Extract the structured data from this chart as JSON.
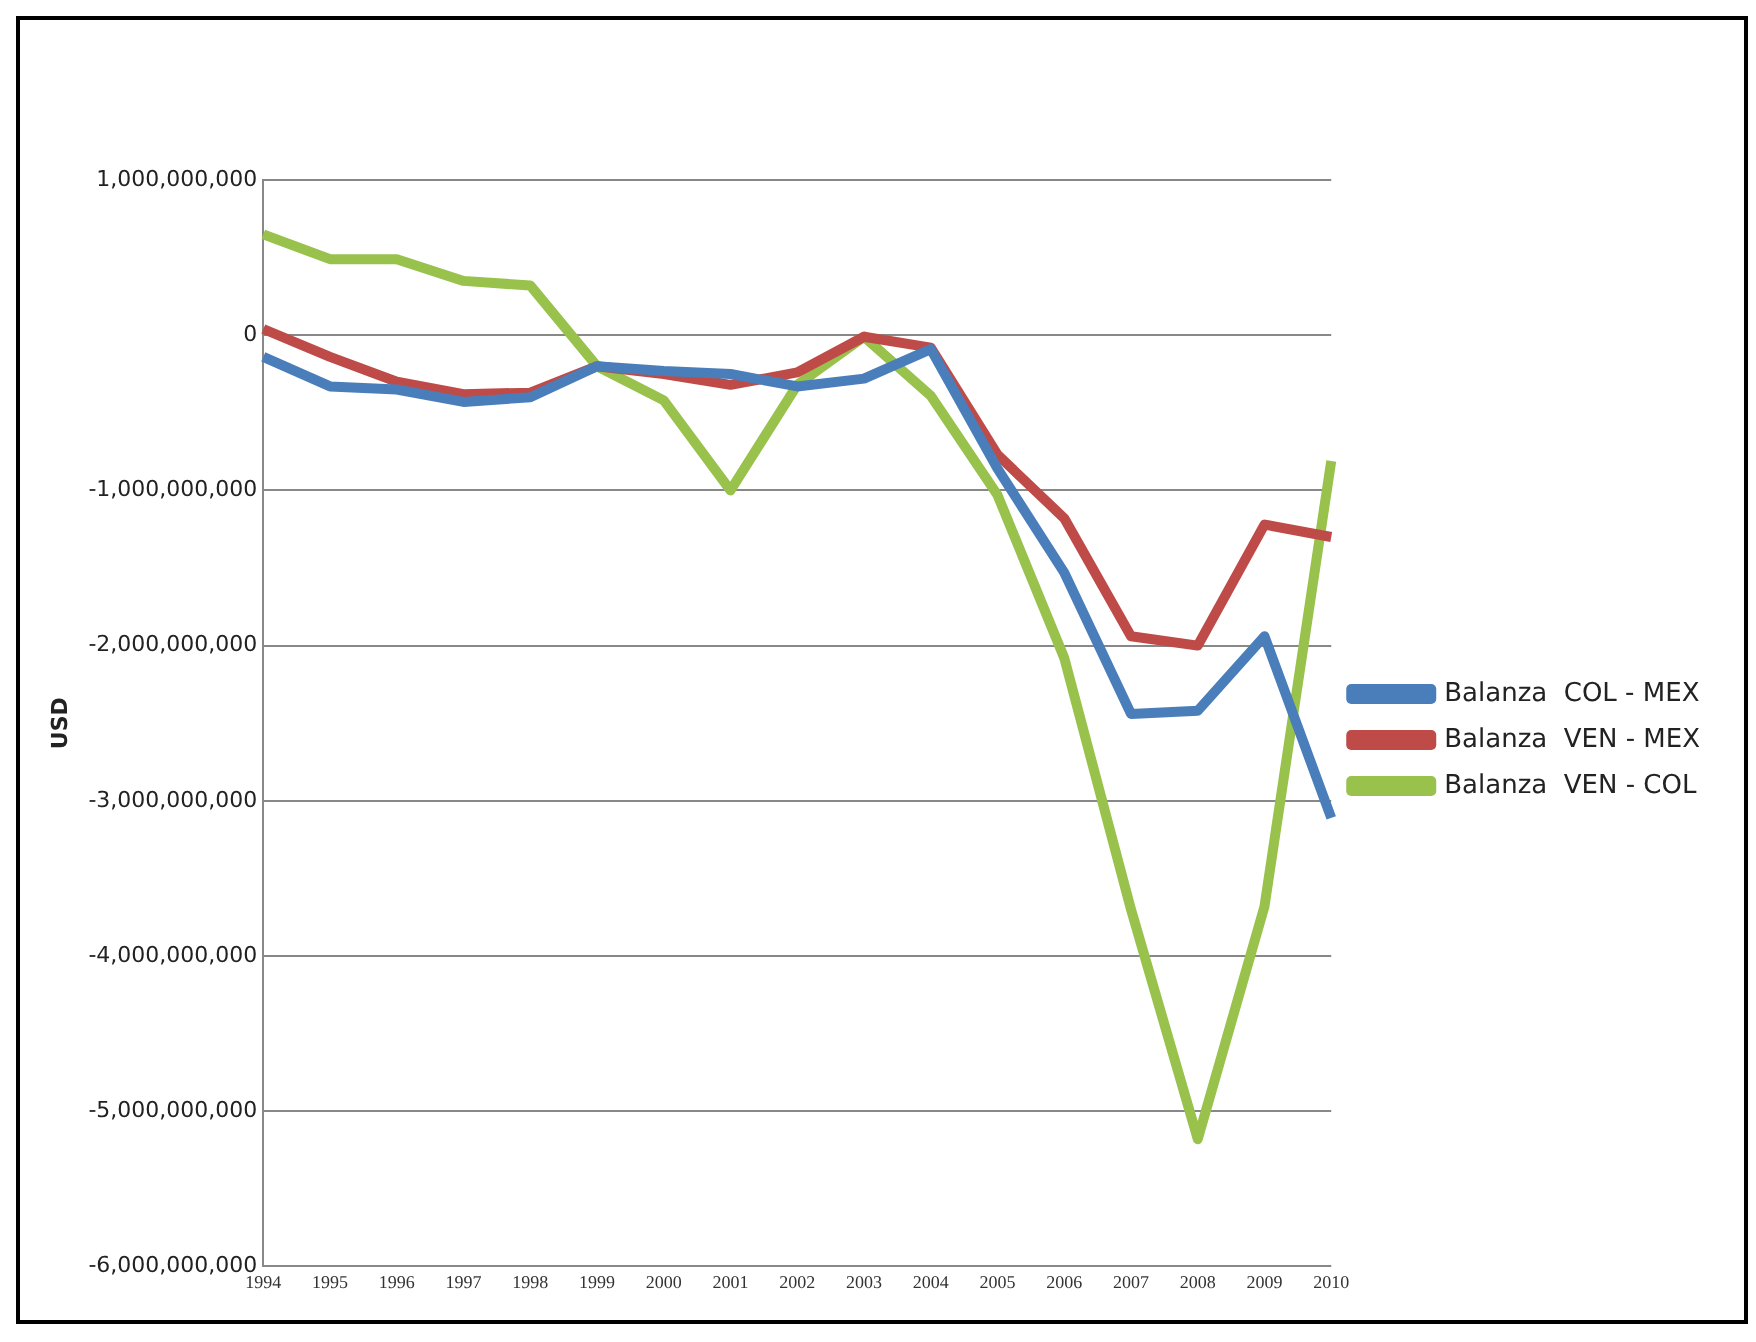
{
  "chart_data": {
    "type": "line",
    "ylabel": "USD",
    "categories": [
      "1994",
      "1995",
      "1996",
      "1997",
      "1998",
      "1999",
      "2000",
      "2001",
      "2002",
      "2003",
      "2004",
      "2005",
      "2006",
      "2007",
      "2008",
      "2009",
      "2010"
    ],
    "series": [
      {
        "name": "Balanza  COL - MEX",
        "color": "#4a7ebb",
        "values": [
          -140000000,
          -330000000,
          -350000000,
          -430000000,
          -400000000,
          -200000000,
          -230000000,
          -250000000,
          -330000000,
          -280000000,
          -90000000,
          -860000000,
          -1530000000,
          -2440000000,
          -2420000000,
          -1940000000,
          -3110000000
        ]
      },
      {
        "name": "Balanza  VEN - MEX",
        "color": "#be4b48",
        "values": [
          40000000,
          -140000000,
          -300000000,
          -380000000,
          -370000000,
          -200000000,
          -250000000,
          -320000000,
          -240000000,
          -10000000,
          -80000000,
          -770000000,
          -1180000000,
          -1940000000,
          -2000000000,
          -1220000000,
          -1300000000
        ]
      },
      {
        "name": "Balanza  VEN - COL",
        "color": "#98c24c",
        "values": [
          650000000,
          490000000,
          490000000,
          350000000,
          320000000,
          -200000000,
          -420000000,
          -1000000000,
          -320000000,
          -10000000,
          -390000000,
          -1030000000,
          -2080000000,
          -3700000000,
          -5180000000,
          -3680000000,
          -810000000
        ]
      }
    ],
    "ylim": [
      -6000000000,
      1000000000
    ],
    "yticks": [
      {
        "value": -6000000000,
        "label": "-6,000,000,000"
      },
      {
        "value": -5000000000,
        "label": "-5,000,000,000"
      },
      {
        "value": -4000000000,
        "label": "-4,000,000,000"
      },
      {
        "value": -3000000000,
        "label": "-3,000,000,000"
      },
      {
        "value": -2000000000,
        "label": "-2,000,000,000"
      },
      {
        "value": -1000000000,
        "label": "-1,000,000,000"
      },
      {
        "value": 0,
        "label": "0"
      },
      {
        "value": 1000000000,
        "label": "1,000,000,000"
      }
    ],
    "grid": "y",
    "legend": "right",
    "marker": "none",
    "line_style": "solid"
  }
}
